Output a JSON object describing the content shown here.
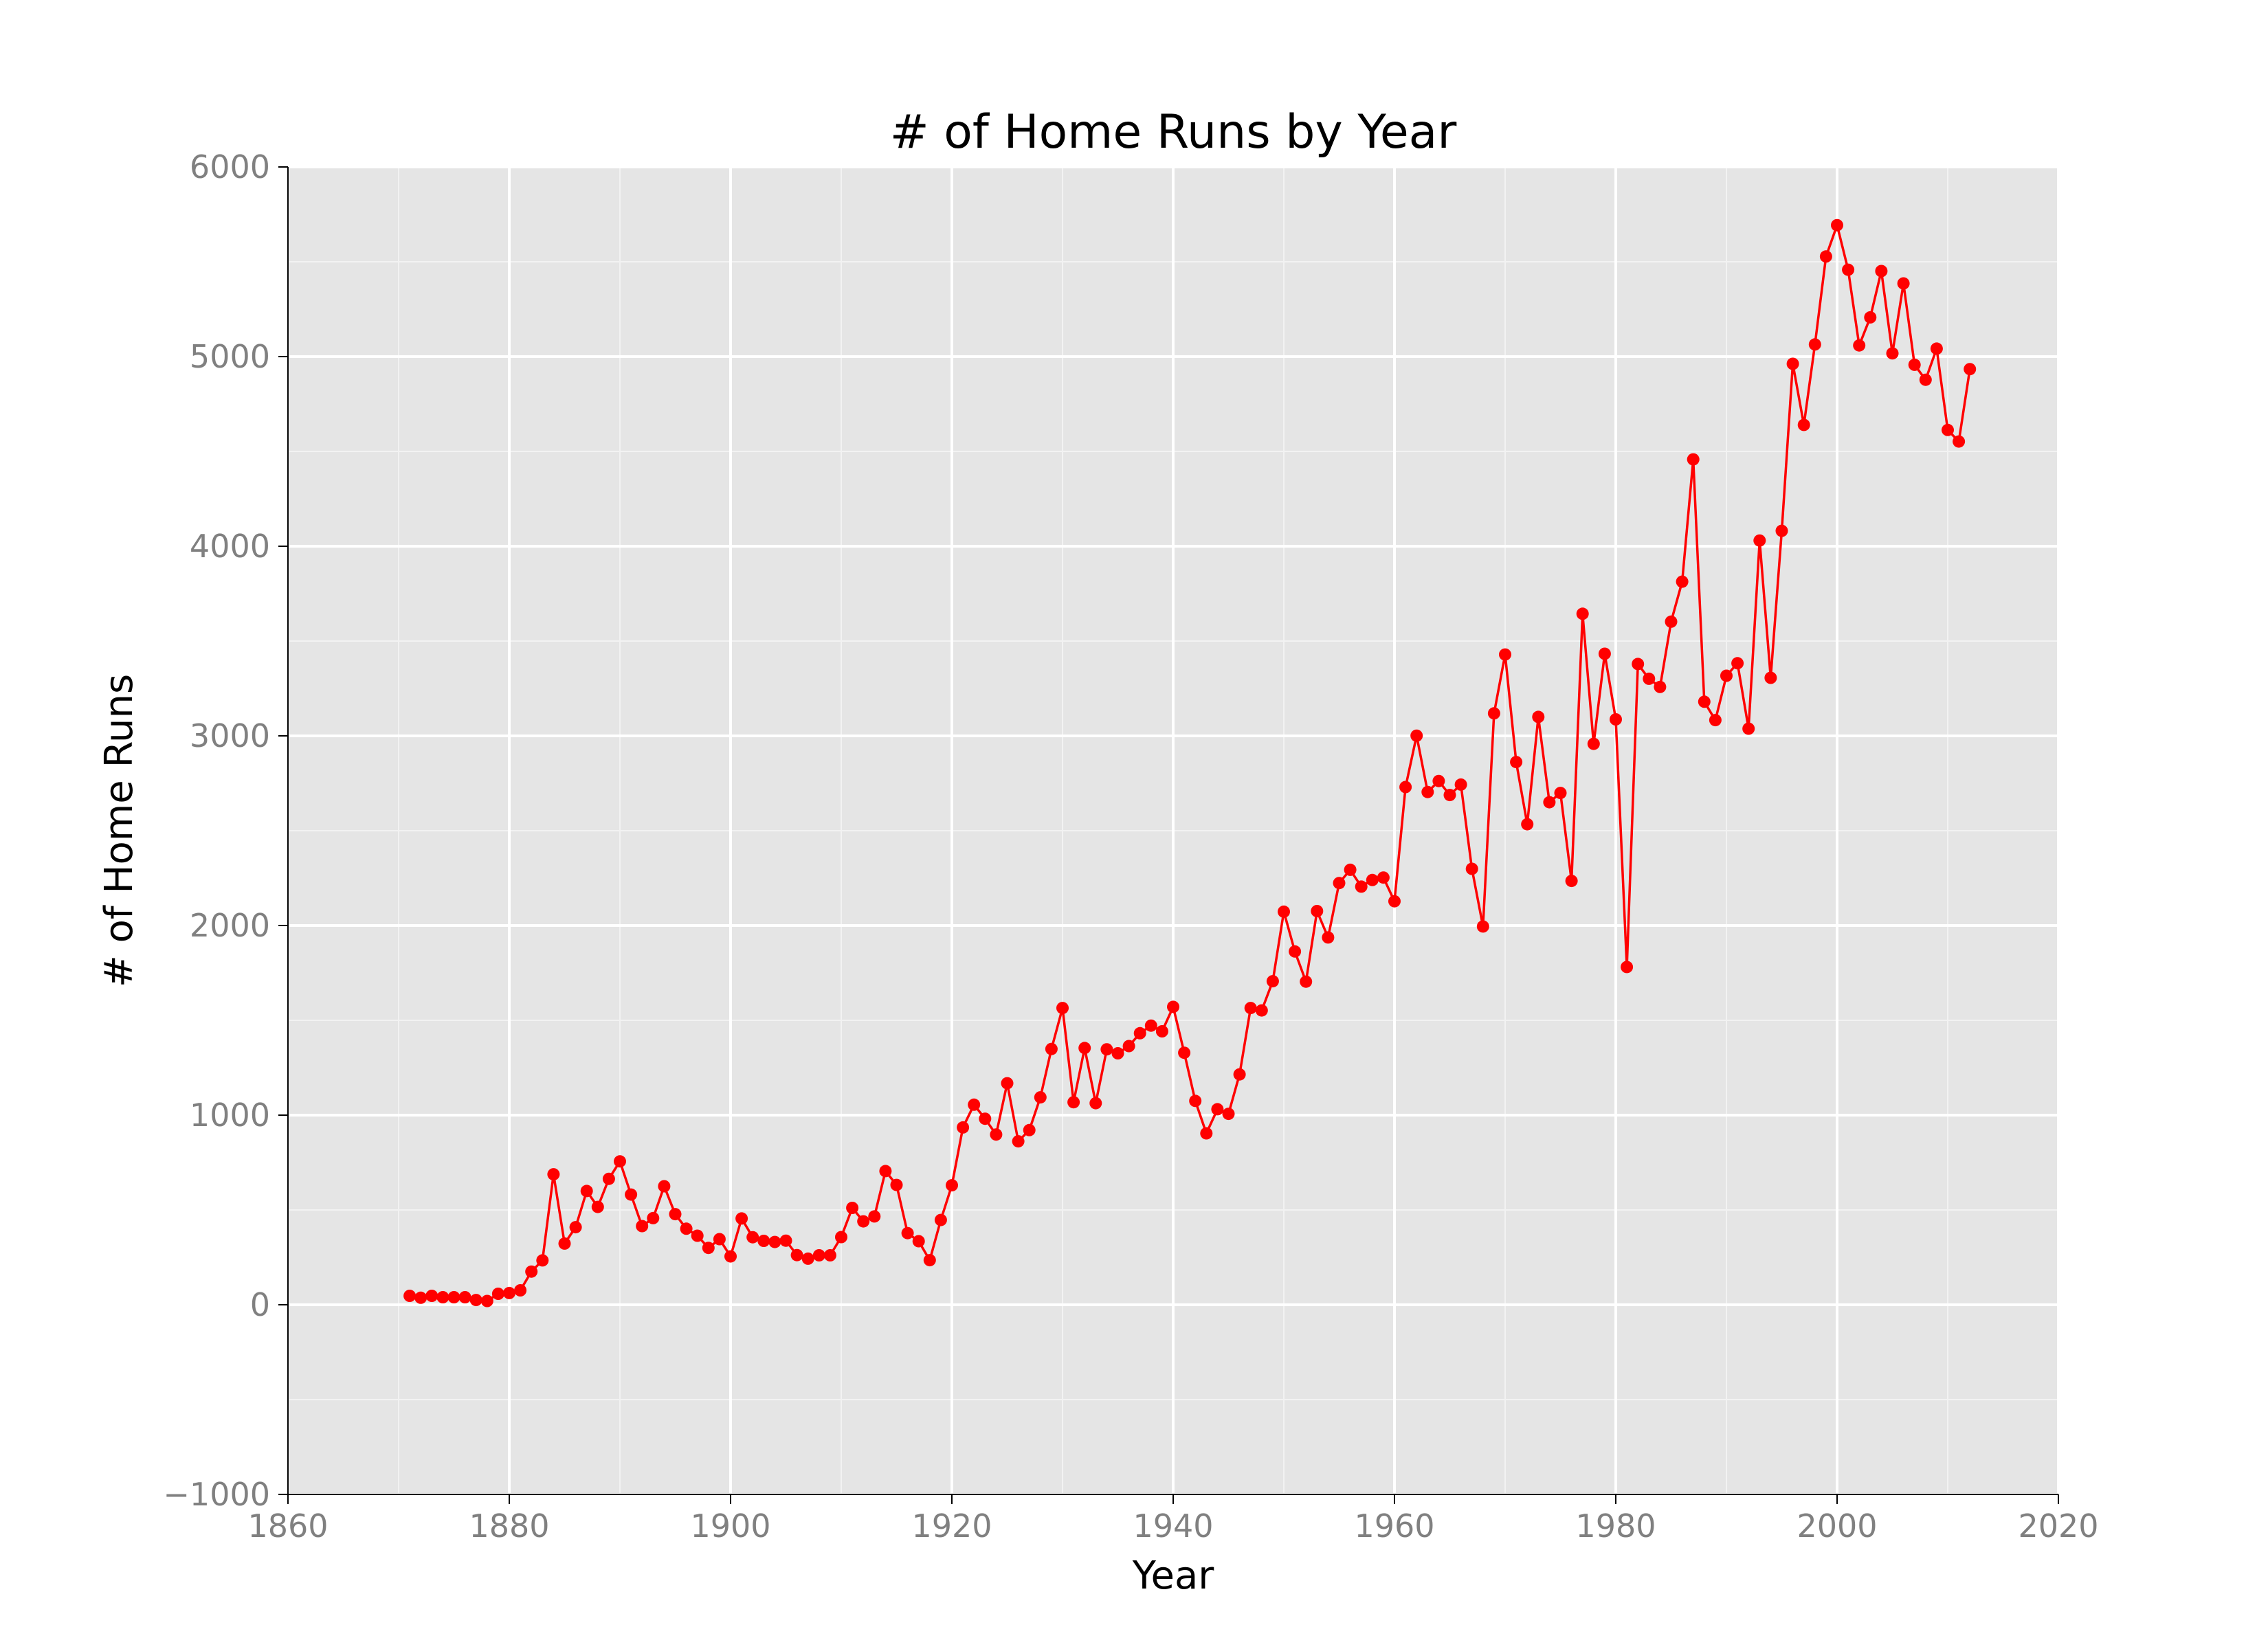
{
  "chart_data": {
    "type": "line",
    "title": "# of Home Runs by Year",
    "xlabel": "Year",
    "ylabel": "# of Home Runs",
    "xlim": [
      1860,
      2020
    ],
    "ylim": [
      -1000,
      6000
    ],
    "xticks": [
      1860,
      1880,
      1900,
      1920,
      1940,
      1960,
      1980,
      2000,
      2020
    ],
    "yticks": [
      -1000,
      0,
      1000,
      2000,
      3000,
      4000,
      5000,
      6000
    ],
    "ytick_labels": [
      "−1000",
      "0",
      "1000",
      "2000",
      "3000",
      "4000",
      "5000",
      "6000"
    ],
    "grid": true,
    "markers": true,
    "colors": {
      "series": "#ff0000",
      "panel_bg": "#e5e5e5",
      "grid_major": "#ffffff",
      "grid_minor": "#f2f2f2",
      "tick_text": "#808080"
    },
    "series": [
      {
        "x": [
          1871,
          1872,
          1873,
          1874,
          1875,
          1876,
          1877,
          1878,
          1879,
          1880,
          1881,
          1882,
          1883,
          1884,
          1885,
          1886,
          1887,
          1888,
          1889,
          1890,
          1891,
          1892,
          1893,
          1894,
          1895,
          1896,
          1897,
          1898,
          1899,
          1900,
          1901,
          1902,
          1903,
          1904,
          1905,
          1906,
          1907,
          1908,
          1909,
          1910,
          1911,
          1912,
          1913,
          1914,
          1915,
          1916,
          1917,
          1918,
          1919,
          1920,
          1921,
          1922,
          1923,
          1924,
          1925,
          1926,
          1927,
          1928,
          1929,
          1930,
          1931,
          1932,
          1933,
          1934,
          1935,
          1936,
          1937,
          1938,
          1939,
          1940,
          1941,
          1942,
          1943,
          1944,
          1945,
          1946,
          1947,
          1948,
          1949,
          1950,
          1951,
          1952,
          1953,
          1954,
          1955,
          1956,
          1957,
          1958,
          1959,
          1960,
          1961,
          1962,
          1963,
          1964,
          1965,
          1966,
          1967,
          1968,
          1969,
          1970,
          1971,
          1972,
          1973,
          1974,
          1975,
          1976,
          1977,
          1978,
          1979,
          1980,
          1981,
          1982,
          1983,
          1984,
          1985,
          1986,
          1987,
          1988,
          1989,
          1990,
          1991,
          1992,
          1993,
          1994,
          1995,
          1996,
          1997,
          1998,
          1999,
          2000,
          2001,
          2002,
          2003,
          2004,
          2005,
          2006,
          2007,
          2008,
          2009,
          2010,
          2011,
          2012
        ],
        "values": [
          47,
          37,
          47,
          40,
          40,
          40,
          25,
          20,
          58,
          62,
          76,
          175,
          234,
          688,
          323,
          409,
          600,
          516,
          664,
          756,
          581,
          415,
          457,
          625,
          478,
          401,
          364,
          300,
          346,
          255,
          455,
          356,
          337,
          331,
          338,
          262,
          243,
          261,
          261,
          357,
          511,
          440,
          466,
          705,
          632,
          378,
          335,
          235,
          447,
          630,
          935,
          1055,
          981,
          898,
          1168,
          862,
          921,
          1094,
          1349,
          1565,
          1068,
          1354,
          1063,
          1347,
          1326,
          1364,
          1432,
          1472,
          1442,
          1571,
          1329,
          1075,
          904,
          1031,
          1007,
          1215,
          1565,
          1552,
          1706,
          2073,
          1863,
          1704,
          2076,
          1937,
          2224,
          2294,
          2205,
          2240,
          2253,
          2128,
          2730,
          3001,
          2704,
          2762,
          2688,
          2743,
          2299,
          1995,
          3119,
          3429,
          2862,
          2534,
          3100,
          2650,
          2699,
          2235,
          3644,
          2958,
          3433,
          3087,
          1781,
          3379,
          3301,
          3258,
          3602,
          3813,
          4458,
          3180,
          3083,
          3317,
          3383,
          3038,
          4030,
          3306,
          4081,
          4962,
          4640,
          5064,
          5528,
          5693,
          5458,
          5059,
          5207,
          5451,
          5017,
          5386,
          4957,
          4878,
          5042,
          4613,
          4552,
          4934
        ]
      }
    ]
  }
}
